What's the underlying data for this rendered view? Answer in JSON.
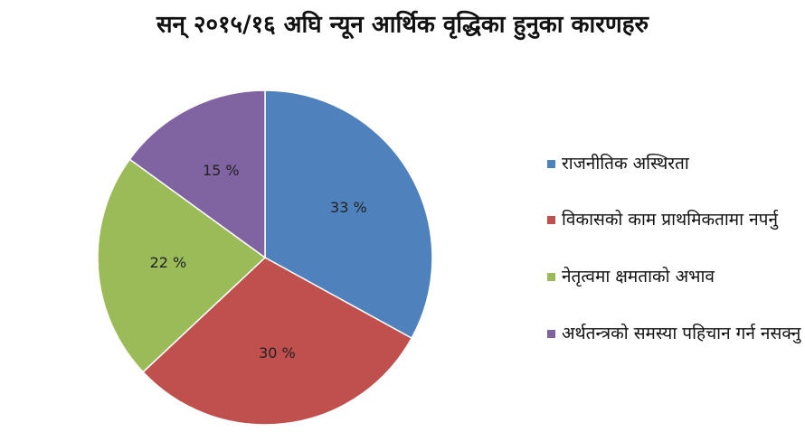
{
  "chart_data": {
    "type": "pie",
    "title": "सन् २०१५/१६ अघि न्यून आर्थिक वृद्धिका हुनुका कारणहरु",
    "categories": [
      "राजनीतिक अस्थिरता",
      "विकासको काम प्राथमिकतामा नपर्नु",
      "नेतृत्वमा क्षमताको अभाव",
      "अर्थतन्त्रको समस्या पहिचान गर्न नसक्नु"
    ],
    "values": [
      33,
      30,
      22,
      15
    ],
    "value_labels": [
      "33 %",
      "30 %",
      "22 %",
      "15 %"
    ],
    "colors": [
      "#4f81bd",
      "#c0504d",
      "#9bbb59",
      "#8064a2"
    ],
    "legend": "right"
  }
}
